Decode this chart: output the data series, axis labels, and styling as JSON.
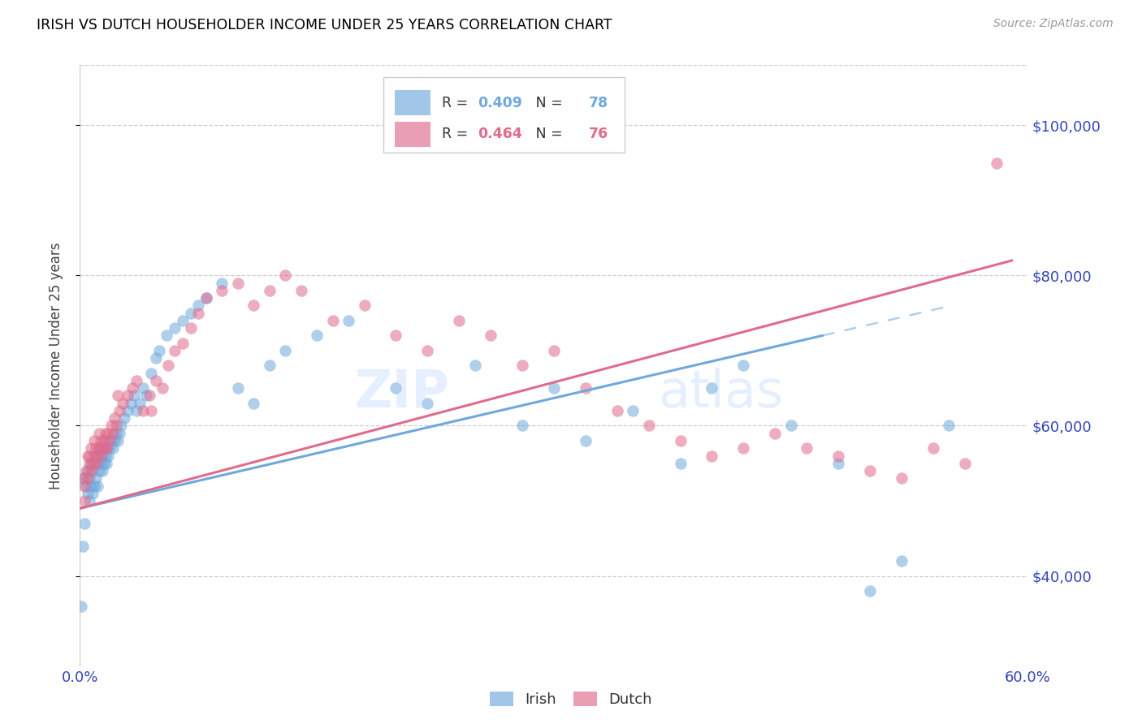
{
  "title": "IRISH VS DUTCH HOUSEHOLDER INCOME UNDER 25 YEARS CORRELATION CHART",
  "source": "Source: ZipAtlas.com",
  "ylabel": "Householder Income Under 25 years",
  "xlim": [
    0.0,
    0.6
  ],
  "ylim": [
    28000,
    108000
  ],
  "yticks": [
    40000,
    60000,
    80000,
    100000
  ],
  "ytick_labels": [
    "$40,000",
    "$60,000",
    "$80,000",
    "$100,000"
  ],
  "xtick_positions": [
    0.0,
    0.1,
    0.2,
    0.3,
    0.4,
    0.5,
    0.6
  ],
  "xtick_labels": [
    "0.0%",
    "",
    "",
    "",
    "",
    "",
    "60.0%"
  ],
  "irish_color": "#6fa8dc",
  "dutch_color": "#e06b8b",
  "irish_R": 0.409,
  "irish_N": 78,
  "dutch_R": 0.464,
  "dutch_N": 76,
  "irish_line_start_x": 0.0,
  "irish_line_end_x": 0.47,
  "irish_line_dash_end_x": 0.55,
  "irish_line_y0": 49000,
  "irish_line_y1": 72000,
  "dutch_line_y0": 49000,
  "dutch_line_y1": 82000,
  "irish_x": [
    0.002,
    0.003,
    0.004,
    0.005,
    0.005,
    0.006,
    0.006,
    0.007,
    0.007,
    0.008,
    0.008,
    0.009,
    0.009,
    0.01,
    0.01,
    0.011,
    0.011,
    0.012,
    0.012,
    0.013,
    0.014,
    0.014,
    0.015,
    0.015,
    0.016,
    0.016,
    0.017,
    0.017,
    0.018,
    0.019,
    0.02,
    0.021,
    0.022,
    0.023,
    0.024,
    0.025,
    0.026,
    0.028,
    0.03,
    0.032,
    0.034,
    0.036,
    0.038,
    0.04,
    0.042,
    0.045,
    0.048,
    0.05,
    0.055,
    0.06,
    0.065,
    0.07,
    0.075,
    0.08,
    0.09,
    0.1,
    0.11,
    0.12,
    0.13,
    0.15,
    0.17,
    0.2,
    0.22,
    0.25,
    0.28,
    0.3,
    0.32,
    0.35,
    0.38,
    0.4,
    0.42,
    0.45,
    0.48,
    0.5,
    0.52,
    0.55,
    0.001,
    0.003
  ],
  "irish_y": [
    44000,
    53000,
    52000,
    51000,
    54000,
    50000,
    53000,
    52000,
    55000,
    51000,
    54000,
    52000,
    55000,
    53000,
    56000,
    52000,
    55000,
    54000,
    57000,
    55000,
    56000,
    54000,
    57000,
    55000,
    58000,
    56000,
    57000,
    55000,
    56000,
    57000,
    58000,
    57000,
    58000,
    59000,
    58000,
    59000,
    60000,
    61000,
    62000,
    63000,
    64000,
    62000,
    63000,
    65000,
    64000,
    67000,
    69000,
    70000,
    72000,
    73000,
    74000,
    75000,
    76000,
    77000,
    79000,
    65000,
    63000,
    68000,
    70000,
    72000,
    74000,
    65000,
    63000,
    68000,
    60000,
    65000,
    58000,
    62000,
    55000,
    65000,
    68000,
    60000,
    55000,
    38000,
    42000,
    60000,
    36000,
    47000
  ],
  "dutch_x": [
    0.002,
    0.003,
    0.004,
    0.005,
    0.005,
    0.006,
    0.007,
    0.007,
    0.008,
    0.009,
    0.009,
    0.01,
    0.01,
    0.011,
    0.012,
    0.013,
    0.013,
    0.014,
    0.015,
    0.016,
    0.017,
    0.018,
    0.019,
    0.02,
    0.021,
    0.022,
    0.023,
    0.025,
    0.027,
    0.03,
    0.033,
    0.036,
    0.04,
    0.044,
    0.048,
    0.052,
    0.056,
    0.06,
    0.065,
    0.07,
    0.075,
    0.08,
    0.09,
    0.1,
    0.11,
    0.12,
    0.13,
    0.14,
    0.16,
    0.18,
    0.2,
    0.22,
    0.24,
    0.26,
    0.28,
    0.3,
    0.32,
    0.34,
    0.36,
    0.38,
    0.4,
    0.42,
    0.44,
    0.46,
    0.48,
    0.5,
    0.52,
    0.54,
    0.56,
    0.58,
    0.003,
    0.006,
    0.012,
    0.016,
    0.024,
    0.045
  ],
  "dutch_y": [
    53000,
    52000,
    54000,
    53000,
    56000,
    55000,
    54000,
    57000,
    55000,
    56000,
    58000,
    55000,
    57000,
    56000,
    57000,
    56000,
    58000,
    57000,
    58000,
    59000,
    57000,
    59000,
    58000,
    60000,
    59000,
    61000,
    60000,
    62000,
    63000,
    64000,
    65000,
    66000,
    62000,
    64000,
    66000,
    65000,
    68000,
    70000,
    71000,
    73000,
    75000,
    77000,
    78000,
    79000,
    76000,
    78000,
    80000,
    78000,
    74000,
    76000,
    72000,
    70000,
    74000,
    72000,
    68000,
    70000,
    65000,
    62000,
    60000,
    58000,
    56000,
    57000,
    59000,
    57000,
    56000,
    54000,
    53000,
    57000,
    55000,
    95000,
    50000,
    56000,
    59000,
    57000,
    64000,
    62000
  ]
}
